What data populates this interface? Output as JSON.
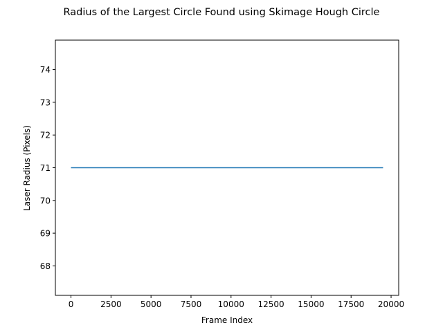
{
  "chart_data": {
    "type": "line",
    "title": "Radius of the Largest Circle Found using Skimage Hough Circle",
    "xlabel": "Frame Index",
    "ylabel": "Laser Radius (Pixels)",
    "xlim": [
      -975,
      20475
    ],
    "ylim": [
      67.1,
      74.9
    ],
    "xticks": [
      0,
      2500,
      5000,
      7500,
      10000,
      12500,
      15000,
      17500,
      20000
    ],
    "yticks": [
      68,
      69,
      70,
      71,
      72,
      73,
      74
    ],
    "grid": false,
    "series": [
      {
        "color": "#1f77b4",
        "x": [
          0,
          19499
        ],
        "y": [
          71,
          71
        ]
      }
    ]
  }
}
